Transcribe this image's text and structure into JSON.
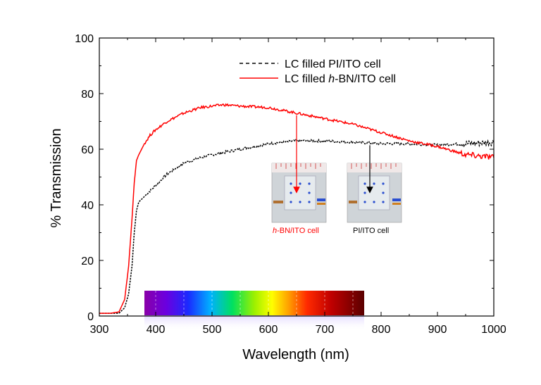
{
  "chart_data": {
    "type": "line",
    "xlabel": "Wavelength (nm)",
    "ylabel": "% Transmission",
    "xlim": [
      300,
      1000
    ],
    "ylim": [
      0,
      100
    ],
    "xticks": [
      300,
      400,
      500,
      600,
      700,
      800,
      900,
      1000
    ],
    "yticks": [
      0,
      20,
      40,
      60,
      80,
      100
    ],
    "legend_placement": "top-right",
    "series": [
      {
        "name": "LC filled PI/ITO cell",
        "color": "#000000",
        "style": "dashed",
        "x": [
          300,
          320,
          335,
          345,
          352,
          358,
          362,
          366,
          370,
          375,
          380,
          390,
          400,
          420,
          450,
          480,
          500,
          550,
          600,
          650,
          700,
          750,
          800,
          850,
          900,
          950,
          1000
        ],
        "y": [
          1,
          1,
          1,
          3,
          8,
          18,
          30,
          38,
          41,
          42,
          43,
          45,
          47,
          51,
          55,
          57,
          58,
          60,
          62,
          63,
          63,
          62.5,
          62,
          62,
          61.5,
          62,
          62.5
        ]
      },
      {
        "name": "LC filled h-BN/ITO cell",
        "color": "#ff0000",
        "style": "solid",
        "x": [
          300,
          320,
          335,
          345,
          352,
          358,
          362,
          366,
          370,
          375,
          380,
          390,
          400,
          420,
          450,
          480,
          500,
          520,
          550,
          600,
          650,
          700,
          750,
          800,
          850,
          900,
          950,
          1000
        ],
        "y": [
          1,
          1,
          1.5,
          6,
          18,
          35,
          48,
          56,
          58,
          60,
          62,
          65,
          67,
          70,
          73,
          75,
          75.5,
          76,
          75.5,
          75,
          73,
          71,
          69,
          66,
          63,
          61,
          58,
          57
        ]
      }
    ],
    "legend_label_parts": {
      "pi": "LC filled PI/ITO cell",
      "bn_prefix": "LC filled ",
      "bn_italic": "h",
      "bn_suffix": "-BN/ITO cell"
    },
    "annotations": {
      "photo_left_caption_italic": "h",
      "photo_left_caption_rest": "-BN/ITO cell",
      "photo_right_caption": "PI/ITO cell",
      "photo_left_arrow_x": 650,
      "photo_right_arrow_x": 780
    },
    "spectrum_bar": {
      "x_range": [
        380,
        770
      ],
      "dashed_ticks": [
        400,
        450,
        500,
        550,
        600,
        650,
        700,
        750
      ]
    }
  }
}
